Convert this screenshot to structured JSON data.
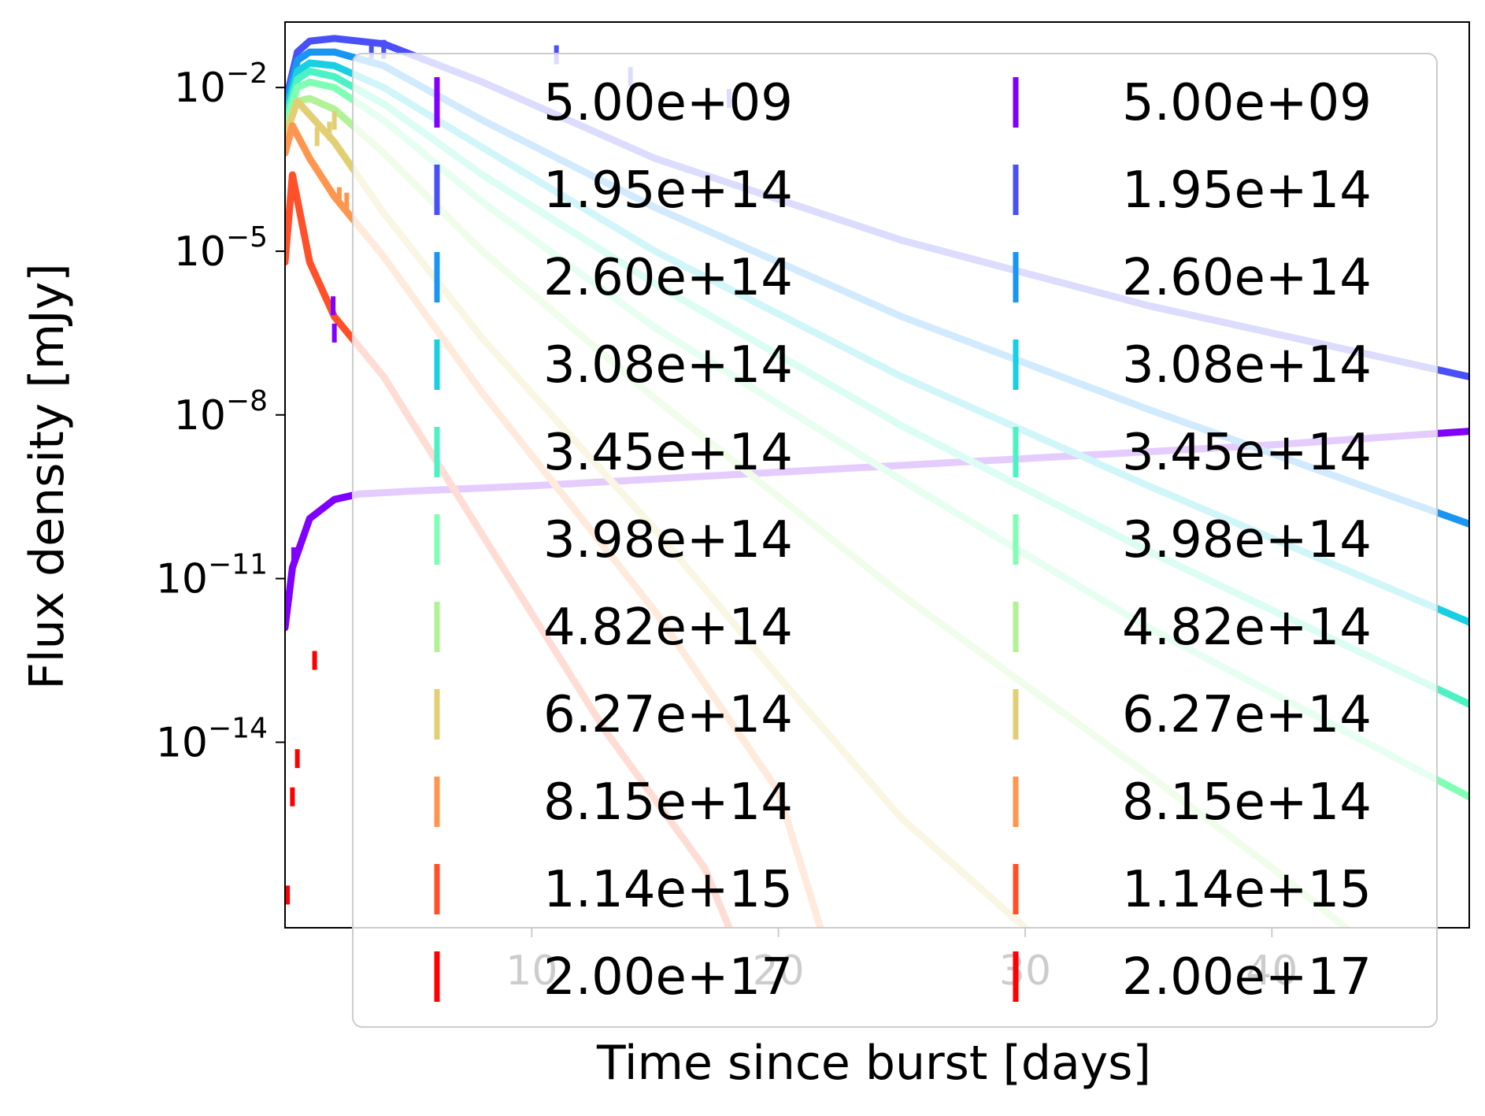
{
  "chart_data": {
    "type": "line",
    "title": "",
    "xlabel": "Time since burst [days]",
    "ylabel": "Flux density [mJy]",
    "xlim": [
      0,
      48
    ],
    "ylim_log10": [
      -17.4,
      -0.8
    ],
    "yscale": "log",
    "x_ticks": [
      10,
      20,
      30,
      40
    ],
    "y_ticks": [
      {
        "exp": -2,
        "mantissa": "10",
        "sup": "−2"
      },
      {
        "exp": -5,
        "mantissa": "10",
        "sup": "−5"
      },
      {
        "exp": -8,
        "mantissa": "10",
        "sup": "−8"
      },
      {
        "exp": -11,
        "mantissa": "10",
        "sup": "−11"
      },
      {
        "exp": -14,
        "mantissa": "10",
        "sup": "−14"
      }
    ],
    "legend_placement": "upper-right, two columns",
    "series": [
      {
        "name": "5.00e+09",
        "color": "#7f00ff",
        "log10_flux": [
          [
            0,
            -11.9
          ],
          [
            0.3,
            -10.8
          ],
          [
            1,
            -9.9
          ],
          [
            2,
            -9.55
          ],
          [
            3,
            -9.45
          ],
          [
            5,
            -9.4
          ],
          [
            10,
            -9.3
          ],
          [
            20,
            -9.05
          ],
          [
            30,
            -8.8
          ],
          [
            40,
            -8.55
          ],
          [
            48,
            -8.3
          ]
        ]
      },
      {
        "name": "1.95e+14",
        "color": "#4a50f8",
        "log10_flux": [
          [
            0,
            -2.3
          ],
          [
            0.5,
            -1.35
          ],
          [
            1,
            -1.15
          ],
          [
            2,
            -1.1
          ],
          [
            4,
            -1.2
          ],
          [
            8,
            -1.9
          ],
          [
            15,
            -3.3
          ],
          [
            25,
            -4.8
          ],
          [
            35,
            -6.0
          ],
          [
            48,
            -7.3
          ]
        ]
      },
      {
        "name": "2.60e+14",
        "color": "#1996f2",
        "log10_flux": [
          [
            0,
            -2.4
          ],
          [
            0.5,
            -1.5
          ],
          [
            1,
            -1.35
          ],
          [
            2,
            -1.35
          ],
          [
            4,
            -1.6
          ],
          [
            8,
            -2.6
          ],
          [
            15,
            -4.2
          ],
          [
            25,
            -6.2
          ],
          [
            35,
            -7.9
          ],
          [
            48,
            -10.0
          ]
        ]
      },
      {
        "name": "3.08e+14",
        "color": "#19cfe2",
        "log10_flux": [
          [
            0,
            -2.5
          ],
          [
            0.5,
            -1.7
          ],
          [
            1,
            -1.55
          ],
          [
            2,
            -1.6
          ],
          [
            4,
            -2.0
          ],
          [
            8,
            -3.1
          ],
          [
            15,
            -5.0
          ],
          [
            25,
            -7.3
          ],
          [
            35,
            -9.3
          ],
          [
            48,
            -11.8
          ]
        ]
      },
      {
        "name": "3.45e+14",
        "color": "#4cf2c4",
        "log10_flux": [
          [
            0,
            -2.6
          ],
          [
            0.5,
            -1.85
          ],
          [
            1,
            -1.7
          ],
          [
            2,
            -1.8
          ],
          [
            4,
            -2.3
          ],
          [
            8,
            -3.6
          ],
          [
            15,
            -5.6
          ],
          [
            25,
            -8.2
          ],
          [
            35,
            -10.5
          ],
          [
            48,
            -13.3
          ]
        ]
      },
      {
        "name": "3.98e+14",
        "color": "#80ffb4",
        "log10_flux": [
          [
            0,
            -2.7
          ],
          [
            0.5,
            -2.0
          ],
          [
            1,
            -1.9
          ],
          [
            2,
            -2.0
          ],
          [
            4,
            -2.6
          ],
          [
            8,
            -4.1
          ],
          [
            15,
            -6.4
          ],
          [
            25,
            -9.2
          ],
          [
            35,
            -11.9
          ],
          [
            48,
            -15.0
          ]
        ]
      },
      {
        "name": "4.82e+14",
        "color": "#b2f296",
        "log10_flux": [
          [
            0,
            -2.8
          ],
          [
            0.5,
            -2.25
          ],
          [
            1,
            -2.2
          ],
          [
            2,
            -2.4
          ],
          [
            4,
            -3.2
          ],
          [
            8,
            -5.0
          ],
          [
            15,
            -7.7
          ],
          [
            25,
            -11.3
          ],
          [
            35,
            -14.6
          ],
          [
            40,
            -16.3
          ],
          [
            43,
            -17.4
          ]
        ]
      },
      {
        "name": "6.27e+14",
        "color": "#e2cf74",
        "log10_flux": [
          [
            0,
            -2.9
          ],
          [
            0.5,
            -2.25
          ],
          [
            1,
            -2.5
          ],
          [
            2,
            -3.0
          ],
          [
            4,
            -4.3
          ],
          [
            8,
            -6.6
          ],
          [
            15,
            -10.1
          ],
          [
            20,
            -12.8
          ],
          [
            25,
            -15.4
          ],
          [
            30,
            -17.4
          ]
        ]
      },
      {
        "name": "8.15e+14",
        "color": "#ff9650",
        "log10_flux": [
          [
            0,
            -3.2
          ],
          [
            0.3,
            -2.7
          ],
          [
            1,
            -3.3
          ],
          [
            2,
            -4.0
          ],
          [
            4,
            -5.1
          ],
          [
            8,
            -7.6
          ],
          [
            15,
            -11.6
          ],
          [
            20,
            -14.9
          ],
          [
            21.7,
            -17.4
          ]
        ]
      },
      {
        "name": "1.14e+15",
        "color": "#ff5029",
        "log10_flux": [
          [
            0,
            -5.2
          ],
          [
            0.3,
            -3.6
          ],
          [
            1,
            -5.2
          ],
          [
            2,
            -6.2
          ],
          [
            4,
            -7.3
          ],
          [
            8,
            -10.2
          ],
          [
            13,
            -13.8
          ],
          [
            17,
            -16.3
          ],
          [
            18,
            -17.4
          ]
        ]
      },
      {
        "name": "2.00e+17",
        "color": "#ff0000",
        "log10_flux": []
      }
    ],
    "observations": [
      {
        "color": "#7f00ff",
        "points": [
          [
            1.95,
            -6.0
          ],
          [
            2.0,
            -6.5
          ],
          [
            0.2,
            -11.2
          ],
          [
            0.35,
            -10.6
          ]
        ]
      },
      {
        "color": "#ff0000",
        "points": [
          [
            0.5,
            -14.3
          ],
          [
            0.3,
            -15.0
          ],
          [
            0.1,
            -16.8
          ],
          [
            1.2,
            -12.5
          ]
        ]
      },
      {
        "color": "#4a50f8",
        "points": [
          [
            4.0,
            -1.3
          ],
          [
            3.5,
            -1.3
          ],
          [
            11,
            -1.4
          ],
          [
            14,
            -1.8
          ],
          [
            18,
            -2.2
          ]
        ]
      },
      {
        "color": "#e2cf74",
        "points": [
          [
            1.3,
            -2.9
          ],
          [
            1.8,
            -2.8
          ],
          [
            2.0,
            -2.6
          ]
        ]
      },
      {
        "color": "#ff9650",
        "points": [
          [
            2.2,
            -4.0
          ],
          [
            2.5,
            -4.1
          ]
        ]
      }
    ]
  },
  "legend": {
    "col1": [
      "5.00e+09",
      "1.95e+14",
      "2.60e+14",
      "3.08e+14",
      "3.45e+14",
      "3.98e+14",
      "4.82e+14",
      "6.27e+14",
      "8.15e+14",
      "1.14e+15",
      "2.00e+17"
    ],
    "col2": [
      "5.00e+09",
      "1.95e+14",
      "2.60e+14",
      "3.08e+14",
      "3.45e+14",
      "3.98e+14",
      "4.82e+14",
      "6.27e+14",
      "8.15e+14",
      "1.14e+15",
      "2.00e+17"
    ]
  }
}
